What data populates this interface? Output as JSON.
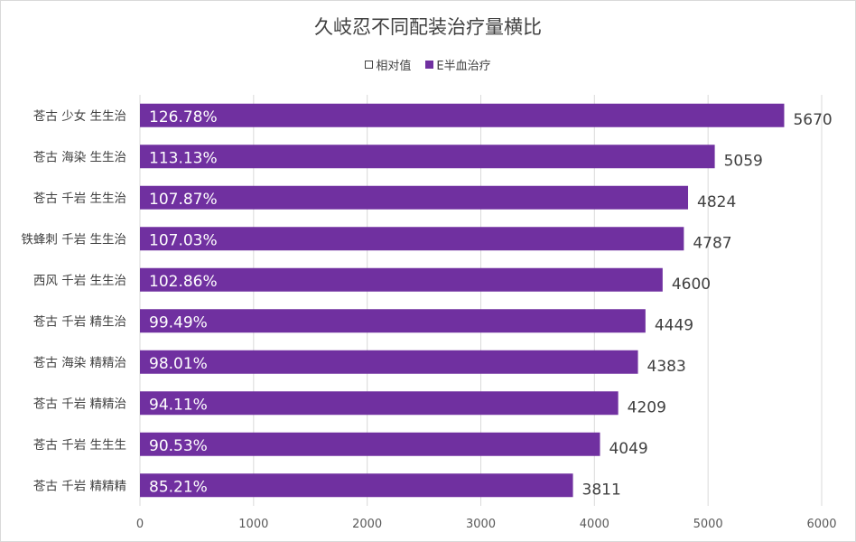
{
  "chart_data": {
    "type": "bar",
    "orientation": "horizontal",
    "title": "久岐忍不同配装治疗量横比",
    "legend": [
      {
        "label": "相对值",
        "color": "#ffffff"
      },
      {
        "label": "E半血治疗",
        "color": "#7030a0"
      }
    ],
    "categories": [
      "苍古 少女 生生治",
      "苍古 海染 生生治",
      "苍古 千岩 生生治",
      "铁蜂刺 千岩 生生治",
      "西风 千岩 生生治",
      "苍古 千岩 精生治",
      "苍古 海染 精精治",
      "苍古 千岩 精精治",
      "苍古 千岩 生生生",
      "苍古 千岩 精精精"
    ],
    "series": [
      {
        "name": "E半血治疗",
        "values": [
          5670,
          5059,
          4824,
          4787,
          4600,
          4449,
          4383,
          4209,
          4049,
          3811
        ]
      },
      {
        "name": "相对值",
        "values": [
          "126.78%",
          "113.13%",
          "107.87%",
          "107.03%",
          "102.86%",
          "99.49%",
          "98.01%",
          "94.11%",
          "90.53%",
          "85.21%"
        ]
      }
    ],
    "xlim": [
      0,
      6000
    ],
    "xticks": [
      0,
      1000,
      2000,
      3000,
      4000,
      5000,
      6000
    ],
    "grid": true,
    "bar_color": "#7030a0"
  }
}
